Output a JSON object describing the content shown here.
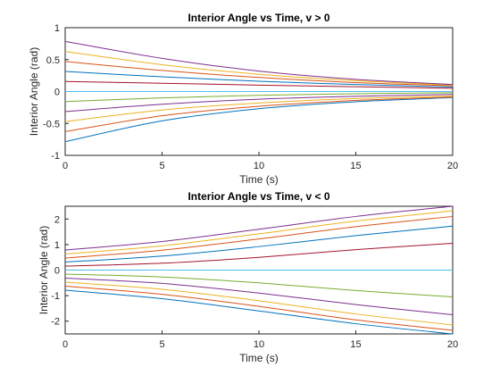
{
  "chart_data": [
    {
      "type": "line",
      "title": "Interior Angle vs Time, v > 0",
      "xlabel": "Time (s)",
      "ylabel": "Interior Angle (rad)",
      "xlim": [
        0,
        20
      ],
      "ylim": [
        -1,
        1
      ],
      "xticks": [
        0,
        5,
        10,
        15,
        20
      ],
      "yticks": [
        -1,
        -0.5,
        0,
        0.5,
        1
      ],
      "xtick_labels": [
        "0",
        "5",
        "10",
        "15",
        "20"
      ],
      "ytick_labels": [
        "-1",
        "-0.5",
        "0",
        "0.5",
        "1"
      ],
      "grid": false,
      "legend": "none",
      "series": [
        {
          "color": "#0072BD",
          "x": [
            0,
            5,
            10,
            15,
            20
          ],
          "values": [
            -0.785,
            -0.46,
            -0.27,
            -0.16,
            -0.095
          ]
        },
        {
          "color": "#D95319",
          "x": [
            0,
            5,
            10,
            15,
            20
          ],
          "values": [
            -0.628,
            -0.38,
            -0.23,
            -0.14,
            -0.085
          ]
        },
        {
          "color": "#EDB120",
          "x": [
            0,
            5,
            10,
            15,
            20
          ],
          "values": [
            -0.471,
            -0.29,
            -0.18,
            -0.11,
            -0.07
          ]
        },
        {
          "color": "#7E2F8E",
          "x": [
            0,
            5,
            10,
            15,
            20
          ],
          "values": [
            -0.314,
            -0.2,
            -0.12,
            -0.075,
            -0.045
          ]
        },
        {
          "color": "#77AC30",
          "x": [
            0,
            5,
            10,
            15,
            20
          ],
          "values": [
            -0.157,
            -0.1,
            -0.06,
            -0.035,
            -0.02
          ]
        },
        {
          "color": "#4DBEEE",
          "x": [
            0,
            5,
            10,
            15,
            20
          ],
          "values": [
            0,
            0,
            0,
            0,
            0
          ]
        },
        {
          "color": "#A2142F",
          "x": [
            0,
            5,
            10,
            15,
            20
          ],
          "values": [
            0.157,
            0.13,
            0.1,
            0.075,
            0.05
          ]
        },
        {
          "color": "#0072BD",
          "x": [
            0,
            5,
            10,
            15,
            20
          ],
          "values": [
            0.314,
            0.23,
            0.16,
            0.11,
            0.07
          ]
        },
        {
          "color": "#D95319",
          "x": [
            0,
            5,
            10,
            15,
            20
          ],
          "values": [
            0.471,
            0.33,
            0.22,
            0.14,
            0.09
          ]
        },
        {
          "color": "#EDB120",
          "x": [
            0,
            5,
            10,
            15,
            20
          ],
          "values": [
            0.628,
            0.42,
            0.27,
            0.17,
            0.1
          ]
        },
        {
          "color": "#7E2F8E",
          "x": [
            0,
            5,
            10,
            15,
            20
          ],
          "values": [
            0.785,
            0.52,
            0.32,
            0.19,
            0.11
          ]
        }
      ]
    },
    {
      "type": "line",
      "title": "Interior Angle vs Time, v < 0",
      "xlabel": "Time (s)",
      "ylabel": "Interior Angle (rad)",
      "xlim": [
        0,
        20
      ],
      "ylim": [
        -2.5,
        2.5
      ],
      "xticks": [
        0,
        5,
        10,
        15,
        20
      ],
      "yticks": [
        -2,
        -1,
        0,
        1,
        2
      ],
      "xtick_labels": [
        "0",
        "5",
        "10",
        "15",
        "20"
      ],
      "ytick_labels": [
        "-2",
        "-1",
        "0",
        "1",
        "2"
      ],
      "grid": false,
      "legend": "none",
      "series": [
        {
          "color": "#0072BD",
          "x": [
            0,
            5,
            10,
            15,
            20
          ],
          "values": [
            -0.785,
            -1.12,
            -1.6,
            -2.1,
            -2.5
          ]
        },
        {
          "color": "#D95319",
          "x": [
            0,
            5,
            10,
            15,
            20
          ],
          "values": [
            -0.628,
            -0.95,
            -1.42,
            -1.95,
            -2.36
          ]
        },
        {
          "color": "#EDB120",
          "x": [
            0,
            5,
            10,
            15,
            20
          ],
          "values": [
            -0.471,
            -0.75,
            -1.2,
            -1.72,
            -2.15
          ]
        },
        {
          "color": "#7E2F8E",
          "x": [
            0,
            5,
            10,
            15,
            20
          ],
          "values": [
            -0.314,
            -0.52,
            -0.9,
            -1.35,
            -1.75
          ]
        },
        {
          "color": "#77AC30",
          "x": [
            0,
            5,
            10,
            15,
            20
          ],
          "values": [
            -0.157,
            -0.27,
            -0.5,
            -0.8,
            -1.05
          ]
        },
        {
          "color": "#4DBEEE",
          "x": [
            0,
            5,
            10,
            15,
            20
          ],
          "values": [
            0,
            0,
            0,
            0,
            0
          ]
        },
        {
          "color": "#A2142F",
          "x": [
            0,
            5,
            10,
            15,
            20
          ],
          "values": [
            0.157,
            0.27,
            0.5,
            0.8,
            1.05
          ]
        },
        {
          "color": "#0072BD",
          "x": [
            0,
            5,
            10,
            15,
            20
          ],
          "values": [
            0.314,
            0.55,
            0.92,
            1.35,
            1.72
          ]
        },
        {
          "color": "#D95319",
          "x": [
            0,
            5,
            10,
            15,
            20
          ],
          "values": [
            0.471,
            0.78,
            1.22,
            1.7,
            2.1
          ]
        },
        {
          "color": "#EDB120",
          "x": [
            0,
            5,
            10,
            15,
            20
          ],
          "values": [
            0.628,
            0.95,
            1.42,
            1.92,
            2.32
          ]
        },
        {
          "color": "#7E2F8E",
          "x": [
            0,
            5,
            10,
            15,
            20
          ],
          "values": [
            0.785,
            1.12,
            1.6,
            2.1,
            2.5
          ]
        }
      ]
    }
  ]
}
